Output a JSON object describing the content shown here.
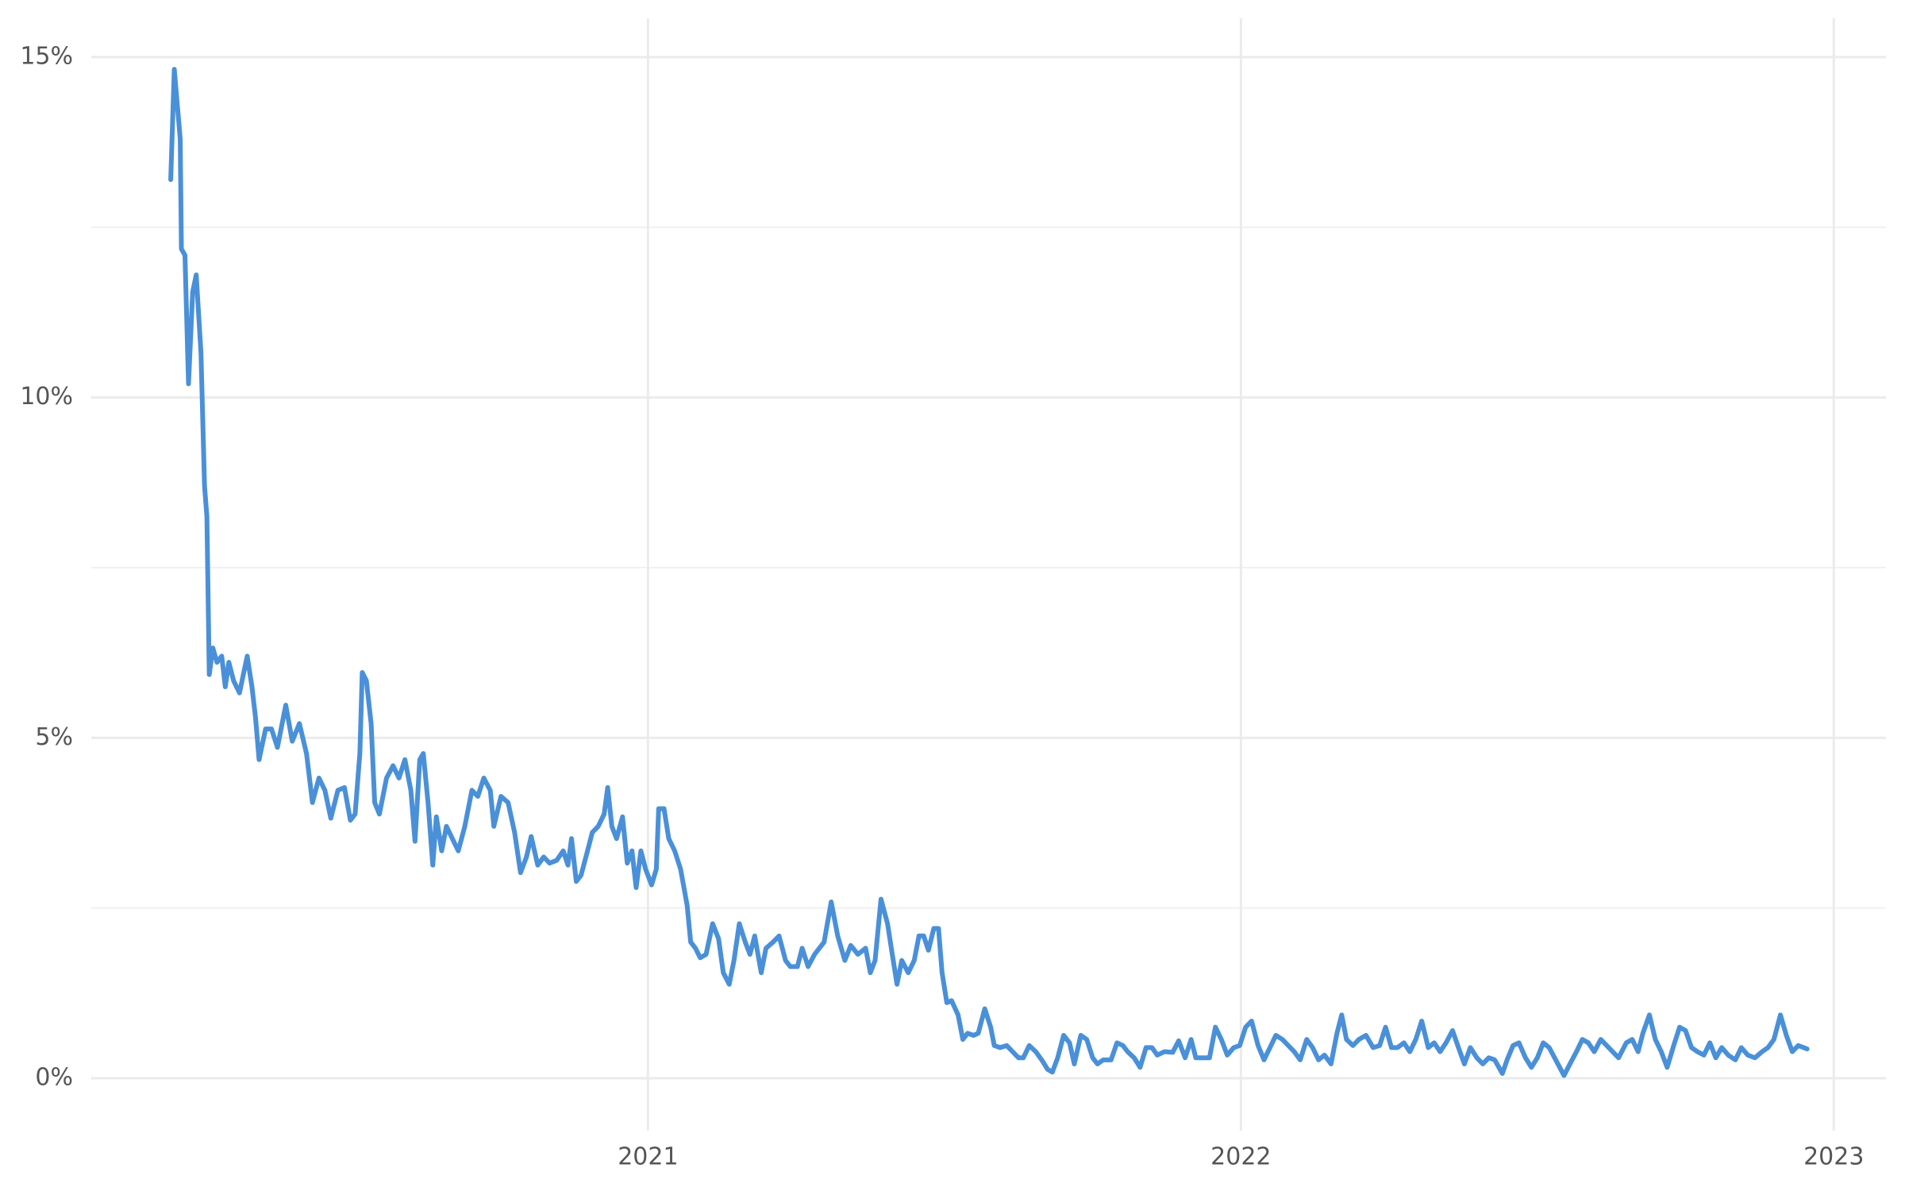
{
  "chart_data": {
    "type": "line",
    "color": "#4a90d9",
    "grid": true,
    "xlim": [
      2020.061,
      2023.088
    ],
    "xticks": [
      2021,
      2022,
      2023
    ],
    "ylim": [
      -0.77,
      15.57
    ],
    "yticks": [
      {
        "value": 0,
        "label": "0%"
      },
      {
        "value": 5,
        "label": "5%"
      },
      {
        "value": 10,
        "label": "10%"
      },
      {
        "value": 15,
        "label": "15%"
      }
    ],
    "y_minor_ticks": [
      2.5,
      7.5,
      12.5
    ],
    "x": [
      2020.195,
      2020.201,
      2020.211,
      2020.213,
      2020.219,
      2020.225,
      2020.232,
      2020.238,
      2020.246,
      2020.252,
      2020.256,
      2020.26,
      2020.266,
      2020.273,
      2020.281,
      2020.287,
      2020.293,
      2020.301,
      2020.311,
      2020.324,
      2020.332,
      2020.338,
      2020.344,
      2020.355,
      2020.365,
      2020.375,
      2020.389,
      2020.4,
      2020.412,
      2020.424,
      2020.434,
      2020.445,
      2020.455,
      2020.465,
      2020.477,
      2020.488,
      2020.498,
      2020.506,
      2020.514,
      2020.518,
      2020.525,
      2020.533,
      2020.539,
      2020.547,
      2020.559,
      2020.57,
      2020.58,
      2020.59,
      2020.6,
      2020.607,
      2020.615,
      2020.621,
      2020.629,
      2020.637,
      2020.643,
      2020.652,
      2020.66,
      2020.67,
      2020.68,
      2020.691,
      2020.703,
      2020.713,
      2020.723,
      2020.734,
      2020.74,
      2020.752,
      2020.764,
      2020.775,
      2020.785,
      2020.795,
      2020.803,
      2020.814,
      2020.824,
      2020.834,
      2020.846,
      2020.857,
      2020.865,
      2020.871,
      2020.879,
      2020.887,
      2020.898,
      2020.906,
      2020.916,
      2020.926,
      2020.932,
      2020.939,
      2020.947,
      2020.957,
      2020.965,
      2020.973,
      2020.98,
      2020.988,
      2020.996,
      2021.006,
      2021.014,
      2021.018,
      2021.027,
      2021.035,
      2021.045,
      2021.055,
      2021.066,
      2021.072,
      2021.08,
      2021.088,
      2021.098,
      2021.109,
      2021.119,
      2021.127,
      2021.137,
      2021.145,
      2021.154,
      2021.164,
      2021.172,
      2021.18,
      2021.191,
      2021.199,
      2021.211,
      2021.221,
      2021.232,
      2021.24,
      2021.252,
      2021.26,
      2021.27,
      2021.281,
      2021.297,
      2021.309,
      2021.32,
      2021.332,
      2021.342,
      2021.354,
      2021.367,
      2021.375,
      2021.383,
      2021.393,
      2021.404,
      2021.412,
      2021.42,
      2021.428,
      2021.439,
      2021.449,
      2021.457,
      2021.465,
      2021.473,
      2021.482,
      2021.49,
      2021.496,
      2021.504,
      2021.512,
      2021.523,
      2021.531,
      2021.539,
      2021.549,
      2021.557,
      2021.568,
      2021.578,
      2021.584,
      2021.594,
      2021.605,
      2021.615,
      2021.625,
      2021.633,
      2021.643,
      2021.654,
      2021.664,
      2021.674,
      2021.682,
      2021.691,
      2021.701,
      2021.711,
      2021.719,
      2021.73,
      2021.74,
      2021.75,
      2021.758,
      2021.768,
      2021.781,
      2021.791,
      2021.801,
      2021.809,
      2021.82,
      2021.83,
      2021.84,
      2021.85,
      2021.859,
      2021.871,
      2021.885,
      2021.895,
      2021.906,
      2021.916,
      2021.924,
      2021.936,
      2021.947,
      2021.957,
      2021.967,
      2021.977,
      2021.988,
      2021.998,
      2022.008,
      2022.018,
      2022.029,
      2022.039,
      2022.049,
      2022.059,
      2022.07,
      2022.08,
      2022.09,
      2022.1,
      2022.111,
      2022.121,
      2022.131,
      2022.141,
      2022.152,
      2022.162,
      2022.17,
      2022.178,
      2022.189,
      2022.199,
      2022.211,
      2022.223,
      2022.234,
      2022.244,
      2022.254,
      2022.264,
      2022.275,
      2022.285,
      2022.295,
      2022.305,
      2022.316,
      2022.326,
      2022.336,
      2022.346,
      2022.357,
      2022.367,
      2022.377,
      2022.387,
      2022.398,
      2022.408,
      2022.418,
      2022.428,
      2022.441,
      2022.449,
      2022.459,
      2022.469,
      2022.48,
      2022.49,
      2022.5,
      2022.51,
      2022.52,
      2022.531,
      2022.545,
      2022.555,
      2022.566,
      2022.576,
      2022.586,
      2022.596,
      2022.607,
      2022.617,
      2022.627,
      2022.637,
      2022.65,
      2022.66,
      2022.67,
      2022.678,
      2022.689,
      2022.699,
      2022.709,
      2022.719,
      2022.73,
      2022.74,
      2022.75,
      2022.76,
      2022.77,
      2022.781,
      2022.791,
      2022.801,
      2022.811,
      2022.822,
      2022.834,
      2022.844,
      2022.855,
      2022.867,
      2022.879,
      2022.889,
      2022.899,
      2022.91,
      2022.92,
      2022.93,
      2022.94,
      2022.955
    ],
    "values": [
      13.2,
      14.82,
      13.8,
      12.18,
      12.09,
      10.2,
      11.55,
      11.8,
      10.66,
      8.7,
      8.25,
      5.93,
      6.32,
      6.11,
      6.2,
      5.75,
      6.11,
      5.84,
      5.66,
      6.2,
      5.75,
      5.3,
      4.68,
      5.13,
      5.13,
      4.86,
      5.48,
      4.95,
      5.21,
      4.77,
      4.05,
      4.41,
      4.23,
      3.82,
      4.23,
      4.27,
      3.79,
      3.88,
      4.77,
      5.96,
      5.84,
      5.21,
      4.05,
      3.88,
      4.41,
      4.59,
      4.41,
      4.68,
      4.23,
      3.48,
      4.68,
      4.77,
      4.05,
      3.13,
      3.84,
      3.34,
      3.7,
      3.52,
      3.34,
      3.7,
      4.23,
      4.14,
      4.41,
      4.23,
      3.7,
      4.14,
      4.05,
      3.61,
      3.02,
      3.25,
      3.55,
      3.13,
      3.25,
      3.16,
      3.2,
      3.34,
      3.13,
      3.52,
      2.89,
      2.98,
      3.34,
      3.61,
      3.7,
      3.88,
      4.27,
      3.7,
      3.52,
      3.84,
      3.16,
      3.34,
      2.8,
      3.34,
      3.07,
      2.84,
      3.07,
      3.96,
      3.96,
      3.52,
      3.34,
      3.07,
      2.54,
      2.0,
      1.91,
      1.77,
      1.82,
      2.27,
      2.05,
      1.55,
      1.38,
      1.73,
      2.27,
      2.0,
      1.82,
      2.09,
      1.55,
      1.91,
      2.0,
      2.09,
      1.73,
      1.64,
      1.64,
      1.91,
      1.64,
      1.82,
      2.0,
      2.59,
      2.09,
      1.73,
      1.95,
      1.82,
      1.91,
      1.55,
      1.73,
      2.63,
      2.27,
      1.82,
      1.38,
      1.73,
      1.55,
      1.73,
      2.09,
      2.09,
      1.88,
      2.2,
      2.2,
      1.55,
      1.11,
      1.14,
      0.93,
      0.57,
      0.66,
      0.63,
      0.66,
      1.02,
      0.75,
      0.48,
      0.45,
      0.48,
      0.39,
      0.3,
      0.3,
      0.48,
      0.39,
      0.27,
      0.13,
      0.09,
      0.3,
      0.63,
      0.52,
      0.21,
      0.63,
      0.57,
      0.3,
      0.21,
      0.27,
      0.27,
      0.52,
      0.48,
      0.39,
      0.3,
      0.16,
      0.45,
      0.45,
      0.34,
      0.39,
      0.38,
      0.55,
      0.3,
      0.57,
      0.3,
      0.3,
      0.3,
      0.75,
      0.57,
      0.34,
      0.45,
      0.48,
      0.75,
      0.84,
      0.48,
      0.27,
      0.45,
      0.63,
      0.57,
      0.48,
      0.39,
      0.27,
      0.57,
      0.45,
      0.27,
      0.34,
      0.21,
      0.66,
      0.93,
      0.57,
      0.48,
      0.57,
      0.63,
      0.45,
      0.48,
      0.75,
      0.45,
      0.45,
      0.52,
      0.39,
      0.57,
      0.84,
      0.45,
      0.52,
      0.39,
      0.52,
      0.7,
      0.45,
      0.21,
      0.45,
      0.3,
      0.21,
      0.3,
      0.27,
      0.07,
      0.27,
      0.48,
      0.52,
      0.3,
      0.16,
      0.3,
      0.52,
      0.45,
      0.27,
      0.04,
      0.21,
      0.39,
      0.57,
      0.52,
      0.39,
      0.57,
      0.48,
      0.39,
      0.3,
      0.52,
      0.57,
      0.39,
      0.66,
      0.93,
      0.57,
      0.39,
      0.16,
      0.48,
      0.75,
      0.7,
      0.45,
      0.39,
      0.34,
      0.52,
      0.3,
      0.45,
      0.34,
      0.27,
      0.45,
      0.34,
      0.3,
      0.39,
      0.45,
      0.57,
      0.93,
      0.63,
      0.39,
      0.48,
      0.43
    ]
  }
}
